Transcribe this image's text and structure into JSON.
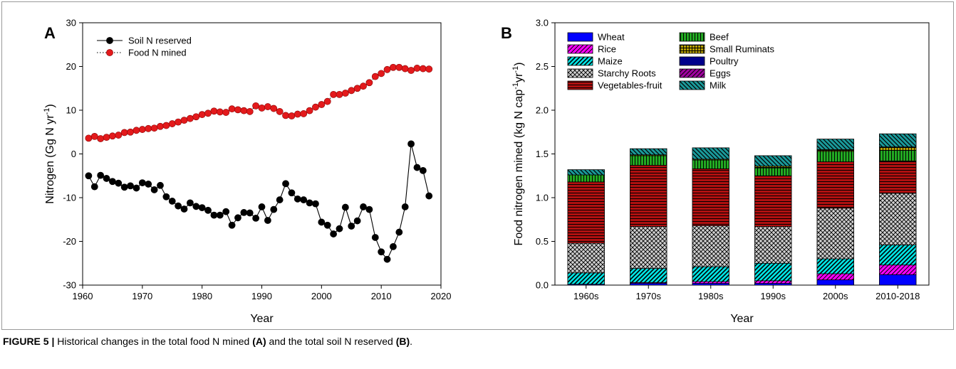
{
  "caption": {
    "label": "FIGURE 5 |",
    "part1": " Historical changes in the total food N mined ",
    "ref_a": "(A)",
    "part2": " and the total soil N reserved ",
    "ref_b": "(B)",
    "part3": "."
  },
  "chart_data": [
    {
      "panel": "A",
      "type": "line",
      "xlabel": "Year",
      "ylabel": "Nitrogen (Gg N yr",
      "ylabel_sup": "-1",
      "ylabel_close": ")",
      "xlim": [
        1960,
        2020
      ],
      "ylim": [
        -30,
        30
      ],
      "xticks": [
        1960,
        1970,
        1980,
        1990,
        2000,
        2010,
        2020
      ],
      "yticks": [
        -30,
        -20,
        -10,
        0,
        10,
        20,
        30
      ],
      "grid": false,
      "legend_position": "top-left",
      "x": [
        1961,
        1962,
        1963,
        1964,
        1965,
        1966,
        1967,
        1968,
        1969,
        1970,
        1971,
        1972,
        1973,
        1974,
        1975,
        1976,
        1977,
        1978,
        1979,
        1980,
        1981,
        1982,
        1983,
        1984,
        1985,
        1986,
        1987,
        1988,
        1989,
        1990,
        1991,
        1992,
        1993,
        1994,
        1995,
        1996,
        1997,
        1998,
        1999,
        2000,
        2001,
        2002,
        2003,
        2004,
        2005,
        2006,
        2007,
        2008,
        2009,
        2010,
        2011,
        2012,
        2013,
        2014,
        2015,
        2016,
        2017,
        2018
      ],
      "series": [
        {
          "name": "Soil N reserved",
          "color": "#000000",
          "line": "solid",
          "values": [
            -5.0,
            -7.5,
            -4.9,
            -5.6,
            -6.3,
            -6.7,
            -7.6,
            -7.3,
            -7.8,
            -6.6,
            -6.9,
            -8.2,
            -7.2,
            -9.8,
            -10.8,
            -11.9,
            -12.6,
            -11.2,
            -12.0,
            -12.3,
            -12.9,
            -14.0,
            -14.0,
            -13.2,
            -16.3,
            -14.6,
            -13.4,
            -13.5,
            -14.7,
            -12.1,
            -15.2,
            -12.7,
            -10.5,
            -6.8,
            -8.9,
            -10.3,
            -10.5,
            -11.2,
            -11.4,
            -15.6,
            -16.3,
            -18.3,
            -17.1,
            -12.2,
            -16.5,
            -15.3,
            -12.1,
            -12.7,
            -19.1,
            -22.4,
            -24.1,
            -21.2,
            -17.9,
            -12.1,
            2.3,
            -3.1,
            -3.8,
            -9.6
          ]
        },
        {
          "name": "Food N mined",
          "color": "#e31a1c",
          "line": "dotted",
          "values": [
            3.6,
            4.0,
            3.5,
            3.8,
            4.1,
            4.3,
            4.9,
            5.0,
            5.4,
            5.6,
            5.8,
            5.9,
            6.3,
            6.5,
            6.9,
            7.3,
            7.7,
            8.1,
            8.5,
            9.0,
            9.3,
            9.8,
            9.6,
            9.5,
            10.3,
            10.1,
            9.9,
            9.7,
            11.0,
            10.5,
            10.8,
            10.4,
            9.7,
            8.8,
            8.7,
            9.1,
            9.2,
            9.9,
            10.7,
            11.3,
            12.0,
            13.6,
            13.6,
            13.9,
            14.5,
            15.0,
            15.5,
            16.3,
            17.7,
            18.4,
            19.3,
            19.8,
            19.8,
            19.5,
            19.1,
            19.6,
            19.5,
            19.4
          ]
        }
      ]
    },
    {
      "panel": "B",
      "type": "bar",
      "stacked": true,
      "xlabel": "Year",
      "ylabel": "Food nitrogen mined (kg N cap",
      "ylabel_sup1": "-1",
      "ylabel_mid": "yr",
      "ylabel_sup2": "-1",
      "ylabel_close": ")",
      "ylim": [
        0,
        3.0
      ],
      "yticks": [
        "0.0",
        "0.5",
        "1.0",
        "1.5",
        "2.0",
        "2.5",
        "3.0"
      ],
      "grid": false,
      "legend_position": "top-left",
      "categories": [
        "1960s",
        "1970s",
        "1980s",
        "1990s",
        "2000s",
        "2010-2018"
      ],
      "series": [
        {
          "name": "Wheat",
          "color": "#0000ff",
          "pattern": "solid",
          "values": [
            0.01,
            0.02,
            0.02,
            0.02,
            0.06,
            0.12
          ]
        },
        {
          "name": "Rice",
          "color": "#ff00ff",
          "pattern": "diag",
          "values": [
            0.0,
            0.01,
            0.02,
            0.03,
            0.07,
            0.11
          ]
        },
        {
          "name": "Maize",
          "color": "#00e5e5",
          "pattern": "diag-dense",
          "values": [
            0.13,
            0.16,
            0.17,
            0.2,
            0.17,
            0.23
          ]
        },
        {
          "name": "Starchy Roots",
          "color": "#d0d0d0",
          "pattern": "cross",
          "values": [
            0.34,
            0.48,
            0.47,
            0.42,
            0.58,
            0.59
          ]
        },
        {
          "name": "Vegetables-fruit",
          "color": "#b01010",
          "pattern": "hlines",
          "values": [
            0.7,
            0.7,
            0.65,
            0.58,
            0.53,
            0.37
          ]
        },
        {
          "name": "Beef",
          "color": "#22aa22",
          "pattern": "vlines",
          "values": [
            0.08,
            0.11,
            0.1,
            0.09,
            0.12,
            0.12
          ]
        },
        {
          "name": "Small Ruminats",
          "color": "#b8a000",
          "pattern": "grid",
          "values": [
            0.0,
            0.01,
            0.01,
            0.02,
            0.02,
            0.04
          ]
        },
        {
          "name": "Poultry",
          "color": "#00008b",
          "pattern": "solid",
          "values": [
            0.0,
            0.0,
            0.0,
            0.0,
            0.0,
            0.0
          ]
        },
        {
          "name": "Eggs",
          "color": "#a000a0",
          "pattern": "diag",
          "values": [
            0.0,
            0.0,
            0.0,
            0.0,
            0.0,
            0.0
          ]
        },
        {
          "name": "Milk",
          "color": "#1a9a9a",
          "pattern": "diag-rev",
          "values": [
            0.06,
            0.07,
            0.13,
            0.12,
            0.12,
            0.15
          ]
        }
      ]
    }
  ]
}
